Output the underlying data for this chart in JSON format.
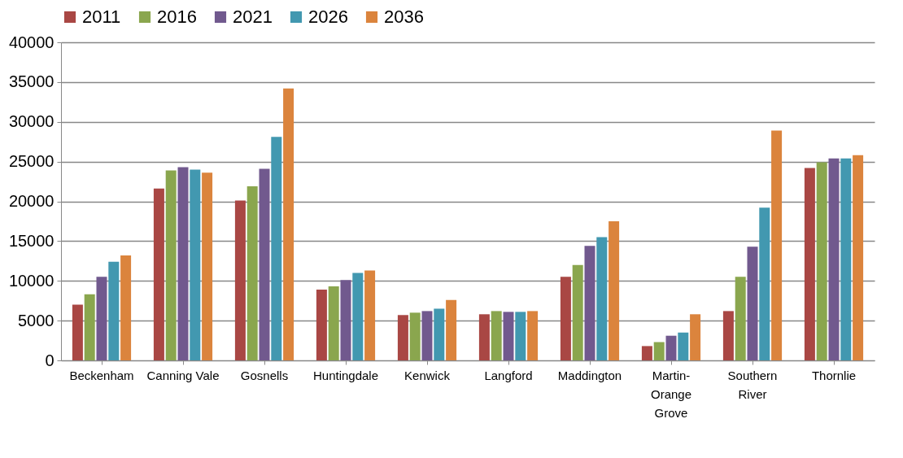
{
  "chart_data": {
    "type": "bar",
    "categories": [
      "Beckenham",
      "Canning Vale",
      "Gosnells",
      "Huntingdale",
      "Kenwick",
      "Langford",
      "Maddington",
      "Martin-Orange Grove",
      "Southern River",
      "Thornlie"
    ],
    "series": [
      {
        "name": "2011",
        "color": "#a94744",
        "values": [
          7000,
          21600,
          20100,
          8900,
          5700,
          5800,
          10500,
          1800,
          6200,
          24200
        ]
      },
      {
        "name": "2016",
        "color": "#8aa64e",
        "values": [
          8300,
          23900,
          21900,
          9300,
          6000,
          6200,
          12000,
          2300,
          10500,
          24900
        ]
      },
      {
        "name": "2021",
        "color": "#71598e",
        "values": [
          10500,
          24300,
          24100,
          10100,
          6200,
          6100,
          14400,
          3100,
          14300,
          25400
        ]
      },
      {
        "name": "2026",
        "color": "#4298b0",
        "values": [
          12400,
          24000,
          28100,
          11000,
          6500,
          6100,
          15500,
          3500,
          19200,
          25400
        ]
      },
      {
        "name": "2036",
        "color": "#db843d",
        "values": [
          13200,
          23600,
          34200,
          11300,
          7600,
          6200,
          17500,
          5800,
          28900,
          25800
        ]
      }
    ],
    "ylim": [
      0,
      40000
    ],
    "yticks": [
      0,
      5000,
      10000,
      15000,
      20000,
      25000,
      30000,
      35000,
      40000
    ],
    "grid": "y",
    "legend": "top"
  }
}
